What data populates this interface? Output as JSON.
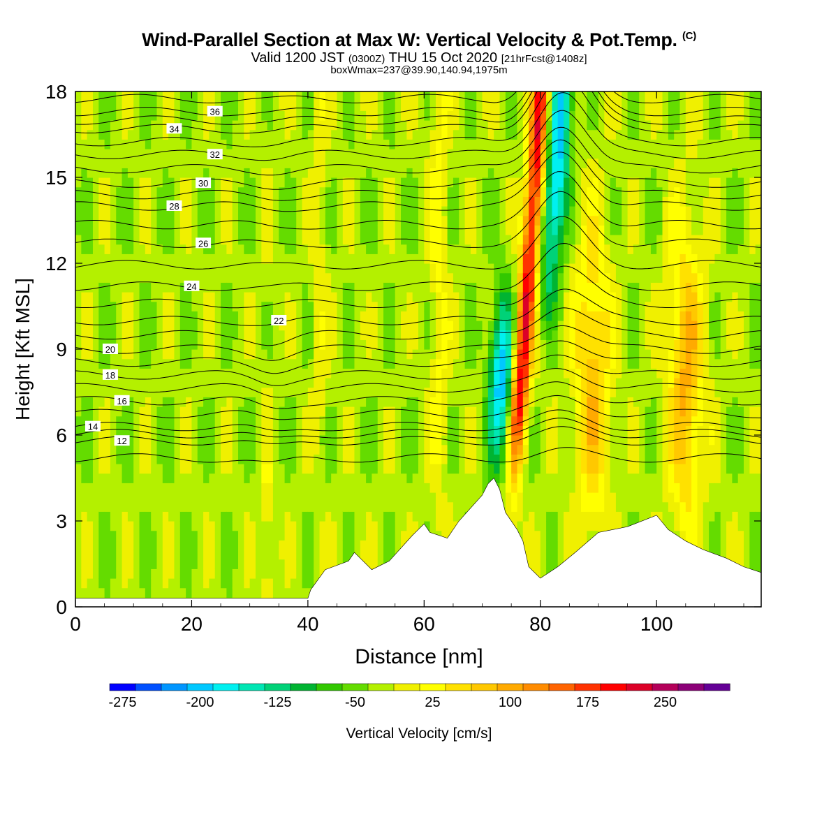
{
  "title": {
    "main": "Wind-Parallel Section at Max W: Vertical Velocity & Pot.Temp.",
    "copyright": "(C)",
    "valid_prefix": "Valid 1200 JST",
    "valid_utc": "(0300Z)",
    "valid_suffix": "THU 15 Oct 2020",
    "forecast": "[21hrFcst@1408z]",
    "box": "boxWmax=237@39.90,140.94,1975m"
  },
  "colorbar": {
    "label": "Vertical Velocity [cm/s]",
    "tick_labels": [
      "-275",
      "-200",
      "-125",
      "-50",
      "25",
      "100",
      "175",
      "250"
    ],
    "colors": [
      "#0000ff",
      "#0050ff",
      "#0096ff",
      "#00c8ff",
      "#00f0f0",
      "#00e6b4",
      "#00d278",
      "#00b432",
      "#32c800",
      "#64dc00",
      "#b4f000",
      "#f0f000",
      "#ffff00",
      "#ffe100",
      "#ffc800",
      "#ffaa00",
      "#ff8c00",
      "#ff6400",
      "#ff3200",
      "#ff0000",
      "#dc0028",
      "#b4005a",
      "#8c0078",
      "#640096"
    ]
  },
  "chart_data": {
    "type": "heatmap",
    "xlabel": "Distance [nm]",
    "ylabel": "Height [Kft MSL]",
    "xlim": [
      0,
      118
    ],
    "ylim": [
      0,
      18
    ],
    "x_ticks": [
      0,
      20,
      40,
      60,
      80,
      100
    ],
    "y_ticks": [
      0,
      3,
      6,
      9,
      12,
      15,
      18
    ],
    "z_label": "Vertical Velocity [cm/s]",
    "z_range": [
      -275,
      275
    ],
    "updraft_cores": [
      {
        "x": 76,
        "max_w": 237
      },
      {
        "x": 89,
        "max_w": 110
      },
      {
        "x": 105,
        "max_w": 120
      }
    ],
    "downdraft_cores": [
      {
        "x": 73,
        "min_w": -180
      },
      {
        "x": 81,
        "min_w": -175
      }
    ],
    "terrain": {
      "x": [
        0,
        40,
        40.5,
        43,
        47,
        48,
        51,
        54,
        58,
        60,
        61,
        64,
        66,
        70,
        71,
        72,
        73,
        74,
        76,
        77,
        78,
        80,
        83,
        86,
        90,
        95,
        100,
        102,
        105,
        108,
        112,
        115,
        118
      ],
      "height": [
        0.3,
        0.3,
        0.6,
        1.3,
        1.6,
        1.9,
        1.3,
        1.6,
        2.5,
        2.9,
        2.6,
        2.4,
        3.0,
        3.9,
        4.3,
        4.5,
        4.1,
        3.3,
        2.7,
        2.3,
        1.4,
        1.0,
        1.4,
        1.9,
        2.6,
        2.8,
        3.2,
        2.7,
        2.3,
        2.0,
        1.7,
        1.4,
        1.2
      ]
    },
    "isentrope_labels": {
      "theta": [
        36,
        34,
        32,
        30,
        28,
        26,
        24,
        22,
        20,
        18,
        16,
        14,
        12
      ],
      "height_left": [
        17.3,
        16.7,
        15.8,
        14.8,
        14.0,
        12.7,
        11.2,
        10.0,
        9.0,
        8.1,
        7.2,
        6.3,
        5.8
      ]
    }
  }
}
